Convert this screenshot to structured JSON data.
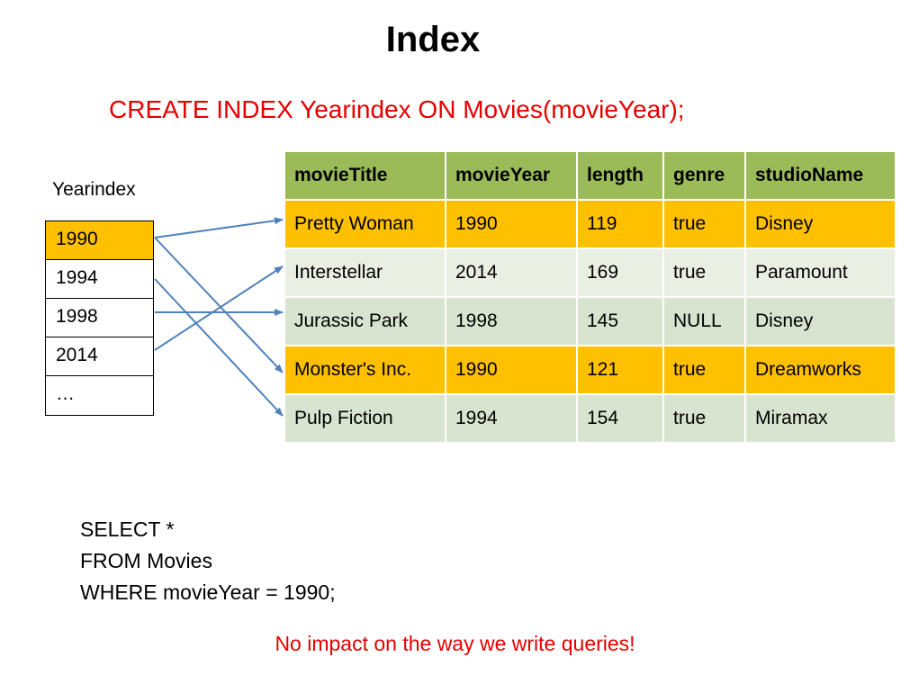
{
  "title": "Index",
  "create_statement": "CREATE INDEX Yearindex ON Movies(movieYear);",
  "index": {
    "label": "Yearindex",
    "entries": [
      "1990",
      "1994",
      "1998",
      "2014",
      "…"
    ]
  },
  "table": {
    "headers": [
      "movieTitle",
      "movieYear",
      "length",
      "genre",
      "studioName"
    ],
    "rows": [
      [
        "Pretty Woman",
        "1990",
        "119",
        "true",
        "Disney"
      ],
      [
        "Interstellar",
        "2014",
        "169",
        "true",
        "Paramount"
      ],
      [
        "Jurassic Park",
        "1998",
        "145",
        "NULL",
        "Disney"
      ],
      [
        "Monster's Inc.",
        "1990",
        "121",
        "true",
        "Dreamworks"
      ],
      [
        "Pulp Fiction",
        "1994",
        "154",
        "true",
        "Miramax"
      ]
    ]
  },
  "query": {
    "line1": "SELECT *",
    "line2": "FROM Movies",
    "line3": "WHERE movieYear = 1990;"
  },
  "note": "No impact on the way we write queries!",
  "colors": {
    "title_red": "#e60000",
    "highlight": "#ffc000",
    "header_green": "#9bbb59",
    "arrow_blue": "#4f81bd"
  }
}
